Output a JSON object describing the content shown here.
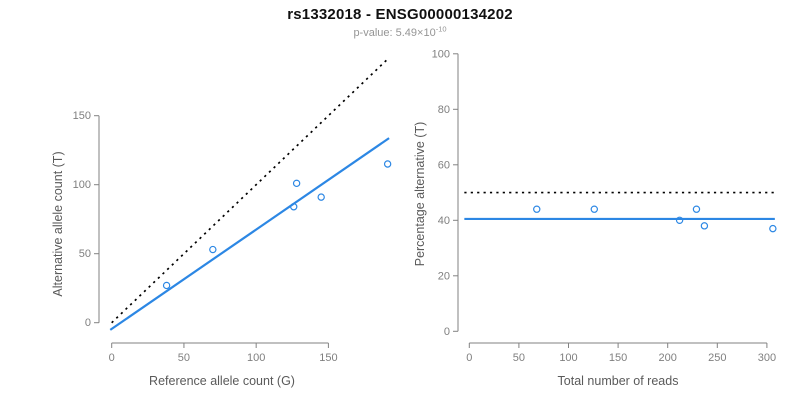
{
  "header": {
    "title": "rs1332018 - ENSG00000134202",
    "pvalue_prefix": "p-value: 5.49×10",
    "pvalue_exponent": "-10"
  },
  "colors": {
    "accent_blue": "#2C87E4",
    "dotted_black": "#000000",
    "axis_gray": "#828282",
    "tick_label_gray": "#7f7f7f",
    "axis_title_gray": "#5a5a5a"
  },
  "chart_data": [
    {
      "type": "scatter",
      "xlabel": "Reference allele count (G)",
      "ylabel": "Alternative allele count (T)",
      "xticks": [
        0,
        50,
        100,
        150
      ],
      "yticks": [
        0,
        50,
        100,
        150
      ],
      "xlim": [
        0,
        200
      ],
      "ylim": [
        0,
        195
      ],
      "grid": false,
      "points": [
        {
          "x": 38,
          "y": 27
        },
        {
          "x": 70,
          "y": 53
        },
        {
          "x": 126,
          "y": 84
        },
        {
          "x": 128,
          "y": 101
        },
        {
          "x": 145,
          "y": 91
        },
        {
          "x": 191,
          "y": 115
        }
      ],
      "lines": [
        {
          "name": "identity-line",
          "style": "dotted",
          "color": "#000000",
          "slope": 1,
          "intercept": 0,
          "x_from": 0,
          "x_to": 192
        },
        {
          "name": "fit-line",
          "style": "solid",
          "color": "#2C87E4",
          "slope": 0.72,
          "intercept": -4.5,
          "x_from": -1,
          "x_to": 192
        }
      ]
    },
    {
      "type": "scatter",
      "xlabel": "Total number of reads",
      "ylabel": "Percentage alternative (T)",
      "xticks": [
        0,
        50,
        100,
        150,
        200,
        250,
        300
      ],
      "yticks": [
        0,
        20,
        40,
        60,
        80,
        100
      ],
      "xlim": [
        0,
        310
      ],
      "ylim": [
        0,
        100
      ],
      "grid": false,
      "points": [
        {
          "x": 68,
          "y": 44
        },
        {
          "x": 126,
          "y": 44
        },
        {
          "x": 212,
          "y": 40
        },
        {
          "x": 229,
          "y": 44
        },
        {
          "x": 237,
          "y": 38
        },
        {
          "x": 306,
          "y": 37
        }
      ],
      "lines": [
        {
          "name": "expected-50-line",
          "style": "dotted",
          "color": "#000000",
          "slope": 0,
          "intercept": 50,
          "x_from": -5,
          "x_to": 308
        },
        {
          "name": "mean-percentage-line",
          "style": "solid",
          "color": "#2C87E4",
          "slope": 0,
          "intercept": 40.5,
          "x_from": -5,
          "x_to": 308
        }
      ]
    }
  ]
}
